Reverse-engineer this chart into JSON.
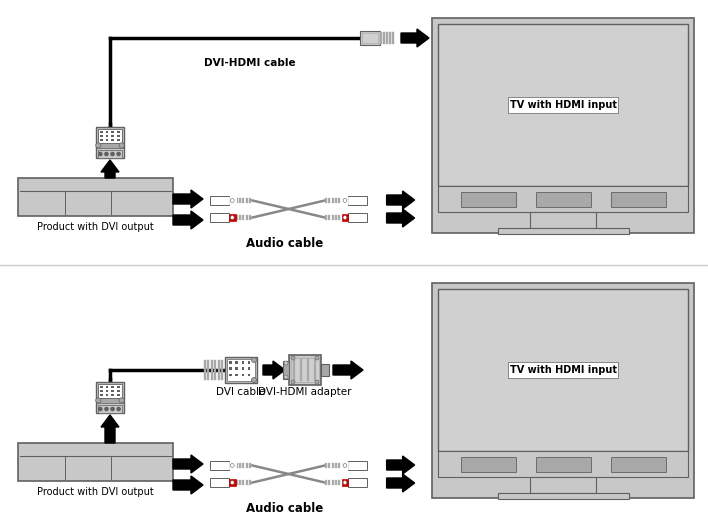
{
  "bg_color": "#ffffff",
  "diagram1": {
    "product_label": "Product with DVI output",
    "tv_label": "TV with HDMI input",
    "cable_label": "DVI-HDMI cable",
    "audio_label": "Audio cable"
  },
  "diagram2": {
    "product_label": "Product with DVI output",
    "tv_label": "TV with HDMI input",
    "dvi_label": "DVI cable",
    "adapter_label": "DVI-HDMI adapter",
    "audio_label": "Audio cable"
  },
  "gray_light": "#c8c8c8",
  "gray_mid": "#a8a8a8",
  "gray_dark": "#606060",
  "gray_screen": "#d0d0d0",
  "black": "#000000",
  "red": "#cc0000",
  "white": "#ffffff",
  "sep_color": "#cccccc"
}
